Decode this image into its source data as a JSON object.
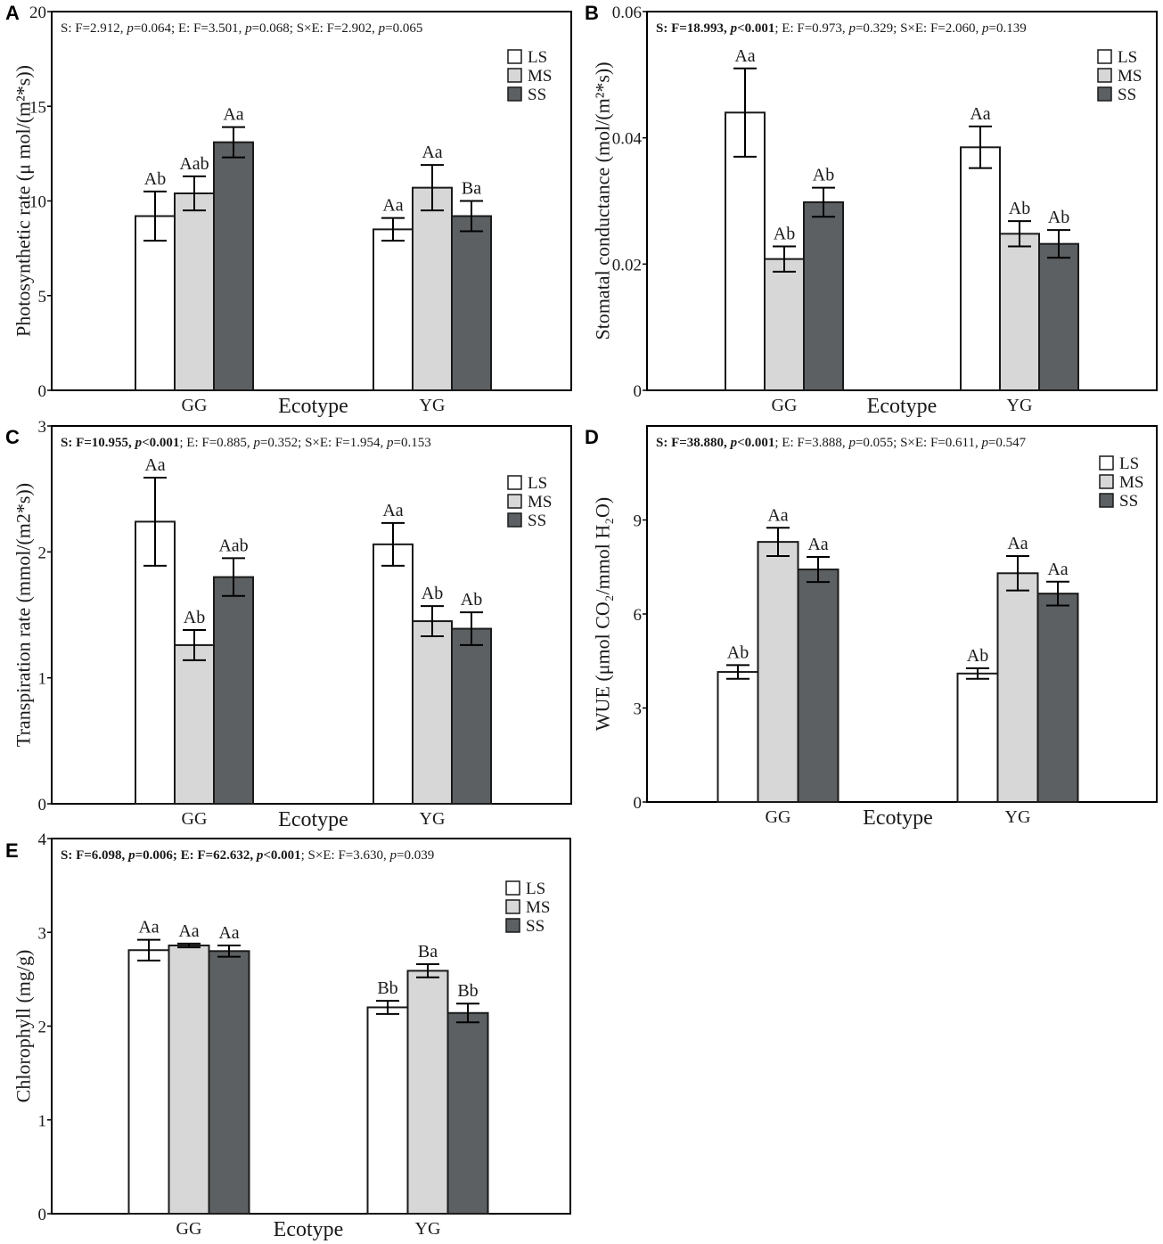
{
  "colors": {
    "LS": "#ffffff",
    "MS": "#d6d7d6",
    "SS": "#5d6062",
    "stroke": "#1a1a1a"
  },
  "chart_data": [
    {
      "type": "bar",
      "panel": "A",
      "annotation": [
        {
          "text": "S: F=2.912, ",
          "bold": false,
          "italic": false
        },
        {
          "text": "p",
          "bold": false,
          "italic": true
        },
        {
          "text": "=0.064; E: F=3.501, ",
          "bold": false,
          "italic": false
        },
        {
          "text": "p",
          "bold": false,
          "italic": true
        },
        {
          "text": "=0.068; S×E: F=2.902, ",
          "bold": false,
          "italic": false
        },
        {
          "text": "p",
          "bold": false,
          "italic": true
        },
        {
          "text": "=0.065",
          "bold": false,
          "italic": false
        }
      ],
      "ylabel": "Photosynthetic rate (μ mol/(m²*s))",
      "xlabel": "Ecotype",
      "ylim": [
        0,
        20
      ],
      "yticks": [
        0,
        5,
        10,
        15,
        20
      ],
      "ytick_labels": [
        "0",
        "5",
        "10",
        "15",
        "20"
      ],
      "categories": [
        "GG",
        "YG"
      ],
      "legend": [
        "LS",
        "MS",
        "SS"
      ],
      "series": [
        {
          "name": "LS",
          "values": [
            9.2,
            8.5
          ],
          "errors": [
            1.3,
            0.6
          ],
          "labels": [
            "Ab",
            "Aa"
          ]
        },
        {
          "name": "MS",
          "values": [
            10.4,
            10.7
          ],
          "errors": [
            0.9,
            1.2
          ],
          "labels": [
            "Aab",
            "Aa"
          ]
        },
        {
          "name": "SS",
          "values": [
            13.1,
            9.2
          ],
          "errors": [
            0.8,
            0.8
          ],
          "labels": [
            "Aa",
            "Ba"
          ]
        }
      ]
    },
    {
      "type": "bar",
      "panel": "B",
      "annotation": [
        {
          "text": "S: F=18.993, ",
          "bold": true,
          "italic": false
        },
        {
          "text": "p",
          "bold": true,
          "italic": true
        },
        {
          "text": "<0.001",
          "bold": true,
          "italic": false
        },
        {
          "text": "; E: F=0.973, ",
          "bold": false,
          "italic": false
        },
        {
          "text": "p",
          "bold": false,
          "italic": true
        },
        {
          "text": "=0.329; S×E: F=2.060, ",
          "bold": false,
          "italic": false
        },
        {
          "text": "p",
          "bold": false,
          "italic": true
        },
        {
          "text": "=0.139",
          "bold": false,
          "italic": false
        }
      ],
      "ylabel": "Stomatal conductance (mol/(m²*s))",
      "xlabel": "Ecotype",
      "ylim": [
        0,
        0.06
      ],
      "yticks": [
        0,
        0.02,
        0.04,
        0.06
      ],
      "ytick_labels": [
        "0",
        "0.02",
        "0.04",
        "0.06"
      ],
      "categories": [
        "GG",
        "YG"
      ],
      "legend": [
        "LS",
        "MS",
        "SS"
      ],
      "series": [
        {
          "name": "LS",
          "values": [
            0.044,
            0.0385
          ],
          "errors": [
            0.007,
            0.0033
          ],
          "labels": [
            "Aa",
            "Aa"
          ]
        },
        {
          "name": "MS",
          "values": [
            0.0208,
            0.0248
          ],
          "errors": [
            0.002,
            0.002
          ],
          "labels": [
            "Ab",
            "Ab"
          ]
        },
        {
          "name": "SS",
          "values": [
            0.0298,
            0.0232
          ],
          "errors": [
            0.0023,
            0.0022
          ],
          "labels": [
            "Ab",
            "Ab"
          ]
        }
      ]
    },
    {
      "type": "bar",
      "panel": "C",
      "annotation": [
        {
          "text": "S: F=10.955, ",
          "bold": true,
          "italic": false
        },
        {
          "text": "p",
          "bold": true,
          "italic": true
        },
        {
          "text": "<0.001",
          "bold": true,
          "italic": false
        },
        {
          "text": "; E: F=0.885, ",
          "bold": false,
          "italic": false
        },
        {
          "text": "p",
          "bold": false,
          "italic": true
        },
        {
          "text": "=0.352; S×E: F=1.954, ",
          "bold": false,
          "italic": false
        },
        {
          "text": "p",
          "bold": false,
          "italic": true
        },
        {
          "text": "=0.153",
          "bold": false,
          "italic": false
        }
      ],
      "ylabel": "Transpiration rate (mmol/(m2*s))",
      "xlabel": "Ecotype",
      "ylim": [
        0,
        3
      ],
      "yticks": [
        0,
        1,
        2,
        3
      ],
      "ytick_labels": [
        "0",
        "1",
        "2",
        "3"
      ],
      "categories": [
        "GG",
        "YG"
      ],
      "legend": [
        "LS",
        "MS",
        "SS"
      ],
      "series": [
        {
          "name": "LS",
          "values": [
            2.24,
            2.06
          ],
          "errors": [
            0.35,
            0.17
          ],
          "labels": [
            "Aa",
            "Aa"
          ]
        },
        {
          "name": "MS",
          "values": [
            1.26,
            1.45
          ],
          "errors": [
            0.12,
            0.12
          ],
          "labels": [
            "Ab",
            "Ab"
          ]
        },
        {
          "name": "SS",
          "values": [
            1.8,
            1.39
          ],
          "errors": [
            0.15,
            0.13
          ],
          "labels": [
            "Aab",
            "Ab"
          ]
        }
      ]
    },
    {
      "type": "bar",
      "panel": "D",
      "annotation": [
        {
          "text": "S: F=38.880, ",
          "bold": true,
          "italic": false
        },
        {
          "text": "p",
          "bold": true,
          "italic": true
        },
        {
          "text": "<0.001",
          "bold": true,
          "italic": false
        },
        {
          "text": "; E: F=3.888, ",
          "bold": false,
          "italic": false
        },
        {
          "text": "p",
          "bold": false,
          "italic": true
        },
        {
          "text": "=0.055; S×E: F=0.611, ",
          "bold": false,
          "italic": false
        },
        {
          "text": "p",
          "bold": false,
          "italic": true
        },
        {
          "text": "=0.547",
          "bold": false,
          "italic": false
        }
      ],
      "ylabel": "WUE (μmol CO₂/mmol H₂O)",
      "xlabel": "Ecotype",
      "ylim": [
        0,
        12
      ],
      "yticks": [
        0,
        3,
        6,
        9
      ],
      "ytick_labels": [
        "0",
        "3",
        "6",
        "9"
      ],
      "categories": [
        "GG",
        "YG"
      ],
      "legend": [
        "LS",
        "MS",
        "SS"
      ],
      "series": [
        {
          "name": "LS",
          "values": [
            4.15,
            4.1
          ],
          "errors": [
            0.22,
            0.17
          ],
          "labels": [
            "Ab",
            "Ab"
          ]
        },
        {
          "name": "MS",
          "values": [
            8.3,
            7.3
          ],
          "errors": [
            0.45,
            0.55
          ],
          "labels": [
            "Aa",
            "Aa"
          ]
        },
        {
          "name": "SS",
          "values": [
            7.42,
            6.65
          ],
          "errors": [
            0.4,
            0.38
          ],
          "labels": [
            "Aa",
            "Aa"
          ]
        }
      ]
    },
    {
      "type": "bar",
      "panel": "E",
      "annotation": [
        {
          "text": "S: F=6.098, ",
          "bold": true,
          "italic": false
        },
        {
          "text": "p",
          "bold": true,
          "italic": true
        },
        {
          "text": "=0.006; E: F=62.632, ",
          "bold": true,
          "italic": false
        },
        {
          "text": "p",
          "bold": true,
          "italic": true
        },
        {
          "text": "<0.001",
          "bold": true,
          "italic": false
        },
        {
          "text": "; S×E: F=3.630, ",
          "bold": false,
          "italic": false
        },
        {
          "text": "p",
          "bold": false,
          "italic": true
        },
        {
          "text": "=0.039",
          "bold": false,
          "italic": false
        }
      ],
      "ylabel": "Chlorophyll (mg/g)",
      "xlabel": "Ecotype",
      "ylim": [
        0,
        4
      ],
      "yticks": [
        0,
        1,
        2,
        3,
        4
      ],
      "ytick_labels": [
        "0",
        "1",
        "2",
        "3",
        "4"
      ],
      "categories": [
        "GG",
        "YG"
      ],
      "legend": [
        "LS",
        "MS",
        "SS"
      ],
      "series": [
        {
          "name": "LS",
          "values": [
            2.81,
            2.2
          ],
          "errors": [
            0.11,
            0.07
          ],
          "labels": [
            "Aa",
            "Bb"
          ]
        },
        {
          "name": "MS",
          "values": [
            2.86,
            2.59
          ],
          "errors": [
            0.02,
            0.07
          ],
          "labels": [
            "Aa",
            "Ba"
          ]
        },
        {
          "name": "SS",
          "values": [
            2.8,
            2.14
          ],
          "errors": [
            0.06,
            0.1
          ],
          "labels": [
            "Aa",
            "Bb"
          ]
        }
      ]
    }
  ]
}
